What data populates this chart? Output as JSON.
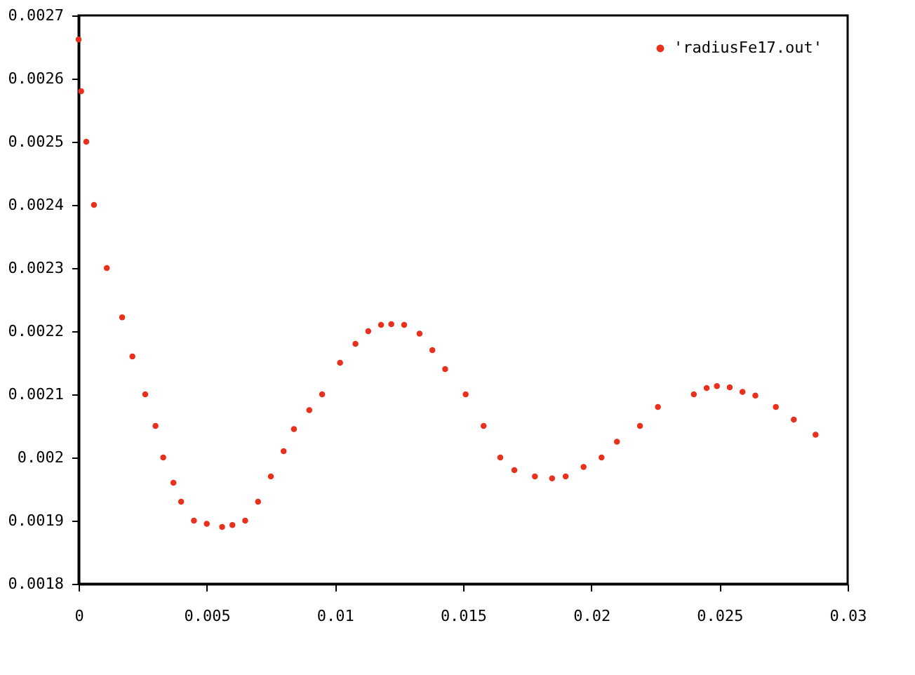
{
  "chart_data": {
    "type": "scatter",
    "marker": "circle",
    "legend": "top right",
    "grid": false,
    "xlim": [
      0,
      0.03
    ],
    "xticks": [
      0,
      0.005,
      0.01,
      0.015,
      0.02,
      0.025,
      0.03
    ],
    "ylim": [
      0.0018,
      0.0027
    ],
    "yticks": [
      0.0018,
      0.0019,
      0.002,
      0.0021,
      0.0022,
      0.0023,
      0.0024,
      0.0025,
      0.0026,
      0.0027
    ],
    "series": [
      {
        "name": "'radiusFe17.out'",
        "color": "#e8301c",
        "x": [
          0,
          0.0001,
          0.0003,
          0.0006,
          0.0011,
          0.0017,
          0.0021,
          0.0026,
          0.003,
          0.0033,
          0.0037,
          0.004,
          0.0045,
          0.005,
          0.0056,
          0.006,
          0.0065,
          0.007,
          0.0075,
          0.008,
          0.0084,
          0.009,
          0.0095,
          0.0102,
          0.0108,
          0.0113,
          0.0118,
          0.0122,
          0.0127,
          0.0133,
          0.0138,
          0.0143,
          0.0151,
          0.0158,
          0.01645,
          0.017,
          0.0178,
          0.01847,
          0.019,
          0.0197,
          0.0204,
          0.021,
          0.0219,
          0.0226,
          0.024,
          0.0245,
          0.0249,
          0.0254,
          0.0259,
          0.0264,
          0.0272,
          0.0279,
          0.02875
        ],
        "values": [
          0.002662,
          0.00258,
          0.0025,
          0.0024,
          0.0023,
          0.002222,
          0.00216,
          0.0021,
          0.00205,
          0.002,
          0.00196,
          0.00193,
          0.0019,
          0.001895,
          0.00189,
          0.001893,
          0.0019,
          0.00193,
          0.00197,
          0.00201,
          0.002045,
          0.002075,
          0.0021,
          0.00215,
          0.00218,
          0.0022,
          0.00221,
          0.002211,
          0.00221,
          0.002196,
          0.00217,
          0.00214,
          0.0021,
          0.00205,
          0.002,
          0.00198,
          0.00197,
          0.001967,
          0.00197,
          0.001985,
          0.002,
          0.002025,
          0.00205,
          0.00208,
          0.0021,
          0.00211,
          0.002113,
          0.002111,
          0.002104,
          0.002098,
          0.00208,
          0.00206,
          0.002036
        ]
      }
    ]
  }
}
